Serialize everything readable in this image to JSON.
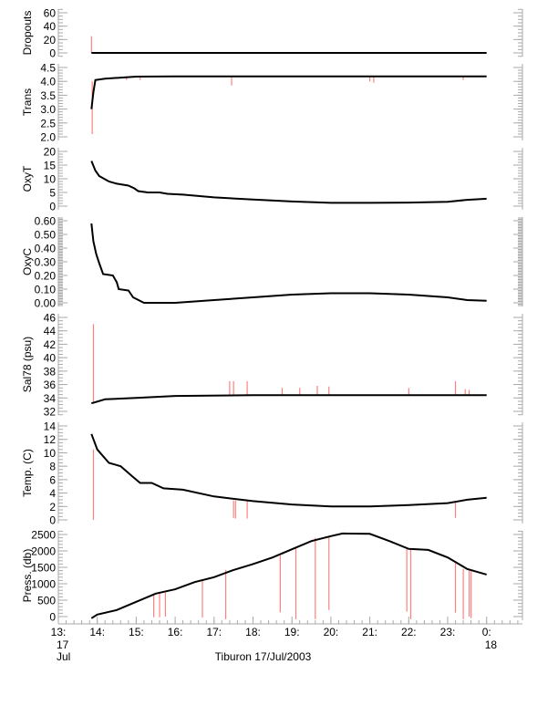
{
  "chart_data": {
    "type": "line",
    "title": "Tiburon 17/Jul/2003",
    "xlabel": "Tiburon 17/Jul/2003",
    "xlim": [
      13,
      24.92
    ],
    "x_ticks": [
      {
        "value": 13,
        "label": "13:",
        "sub1": "17",
        "sub2": "Jul"
      },
      {
        "value": 14,
        "label": "14:"
      },
      {
        "value": 15,
        "label": "15:"
      },
      {
        "value": 16,
        "label": "16:"
      },
      {
        "value": 17,
        "label": "17:"
      },
      {
        "value": 18,
        "label": "18:"
      },
      {
        "value": 19,
        "label": "19:"
      },
      {
        "value": 20,
        "label": "20:"
      },
      {
        "value": 21,
        "label": "21:"
      },
      {
        "value": 22,
        "label": "22:"
      },
      {
        "value": 23,
        "label": "23:"
      },
      {
        "value": 24,
        "label": "0:",
        "sub1": "18"
      }
    ],
    "colors": {
      "line": "#000000",
      "spike": "#ff8080",
      "axis": "#aaaaaa"
    },
    "panels": [
      {
        "ylabel": "Dropouts",
        "ylim": [
          -8,
          66
        ],
        "ticks": [
          0,
          20,
          40,
          60
        ],
        "tick_labels": [
          "0",
          "20",
          "40",
          "60"
        ],
        "minor": 5,
        "series": [
          [
            13.85,
            0
          ],
          [
            24,
            0
          ]
        ],
        "spikes": [
          [
            13.85,
            0,
            25
          ]
        ]
      },
      {
        "ylabel": "Trans",
        "ylim": [
          1.99,
          4.5
        ],
        "ticks": [
          2.0,
          2.5,
          3.0,
          3.5,
          4.0,
          4.5
        ],
        "tick_labels": [
          "2.0",
          "2.5",
          "3.0",
          "3.5",
          "4.0",
          "4.5"
        ],
        "minor": 0.1,
        "series": [
          [
            13.85,
            3.0
          ],
          [
            13.9,
            3.6
          ],
          [
            13.95,
            4.05
          ],
          [
            14.2,
            4.1
          ],
          [
            15,
            4.17
          ],
          [
            16,
            4.18
          ],
          [
            20,
            4.18
          ],
          [
            24,
            4.18
          ]
        ],
        "spikes": [
          [
            13.87,
            4.0,
            2.1
          ],
          [
            14.75,
            4.17,
            4.05
          ],
          [
            15.1,
            4.17,
            4.05
          ],
          [
            17.45,
            4.18,
            3.85
          ],
          [
            21.0,
            4.18,
            4.0
          ],
          [
            21.1,
            4.18,
            3.95
          ],
          [
            23.4,
            4.18,
            4.05
          ]
        ]
      },
      {
        "ylabel": "OxyT",
        "ylim": [
          -0.6,
          20.9
        ],
        "ticks": [
          0,
          5,
          10,
          15,
          20
        ],
        "tick_labels": [
          "0",
          "5",
          "10",
          "15",
          "20"
        ],
        "minor": 1,
        "series": [
          [
            13.85,
            16.5
          ],
          [
            13.95,
            13
          ],
          [
            14.05,
            11
          ],
          [
            14.3,
            9
          ],
          [
            14.5,
            8.2
          ],
          [
            14.8,
            7.5
          ],
          [
            14.95,
            6.5
          ],
          [
            15.05,
            5.5
          ],
          [
            15.3,
            5
          ],
          [
            15.6,
            5
          ],
          [
            15.8,
            4.5
          ],
          [
            16.2,
            4.2
          ],
          [
            17,
            3.2
          ],
          [
            18,
            2.4
          ],
          [
            19,
            1.7
          ],
          [
            20,
            1.2
          ],
          [
            21,
            1.2
          ],
          [
            22,
            1.3
          ],
          [
            23,
            1.6
          ],
          [
            23.5,
            2.3
          ],
          [
            24,
            2.7
          ]
        ],
        "spikes": []
      },
      {
        "ylabel": "OxyC",
        "ylim": [
          -0.02,
          0.632
        ],
        "ticks": [
          0,
          0.1,
          0.2,
          0.3,
          0.4,
          0.5,
          0.6
        ],
        "tick_labels": [
          "0.00",
          "0.10",
          "0.20",
          "0.30",
          "0.40",
          "0.50",
          "0.60"
        ],
        "minor": 0.01,
        "series": [
          [
            13.85,
            0.58
          ],
          [
            13.9,
            0.45
          ],
          [
            13.97,
            0.36
          ],
          [
            14.05,
            0.29
          ],
          [
            14.15,
            0.21
          ],
          [
            14.4,
            0.2
          ],
          [
            14.5,
            0.15
          ],
          [
            14.55,
            0.1
          ],
          [
            14.8,
            0.09
          ],
          [
            14.92,
            0.04
          ],
          [
            15.2,
            0.0
          ],
          [
            16,
            0.0
          ],
          [
            17,
            0.02
          ],
          [
            18,
            0.04
          ],
          [
            19,
            0.06
          ],
          [
            20,
            0.07
          ],
          [
            21,
            0.07
          ],
          [
            22,
            0.06
          ],
          [
            23,
            0.04
          ],
          [
            23.5,
            0.02
          ],
          [
            24,
            0.015
          ]
        ],
        "spikes": []
      },
      {
        "ylabel": "Sal78 (psu)",
        "ylim": [
          31.4,
          46.4
        ],
        "ticks": [
          32,
          34,
          36,
          38,
          40,
          42,
          44,
          46
        ],
        "tick_labels": [
          "32",
          "34",
          "36",
          "38",
          "40",
          "42",
          "44",
          "46"
        ],
        "minor": 0.5,
        "series": [
          [
            13.85,
            33.2
          ],
          [
            14.2,
            33.8
          ],
          [
            15,
            34.0
          ],
          [
            16,
            34.3
          ],
          [
            18,
            34.4
          ],
          [
            24,
            34.4
          ]
        ],
        "spikes": [
          [
            13.9,
            33.3,
            45
          ],
          [
            17.4,
            34.4,
            36.5
          ],
          [
            17.5,
            34.4,
            36.5
          ],
          [
            17.85,
            34.4,
            36.5
          ],
          [
            18.75,
            34.4,
            35.5
          ],
          [
            19.2,
            34.4,
            35.5
          ],
          [
            19.65,
            34.4,
            35.8
          ],
          [
            19.95,
            34.4,
            35.7
          ],
          [
            22.0,
            34.4,
            35.5
          ],
          [
            23.2,
            34.4,
            36.5
          ],
          [
            23.45,
            34.4,
            35.3
          ],
          [
            23.55,
            34.4,
            35.2
          ]
        ]
      },
      {
        "ylabel": "Temp. (C)",
        "ylim": [
          -0.4,
          14.4
        ],
        "ticks": [
          0,
          2,
          4,
          6,
          8,
          10,
          12,
          14
        ],
        "tick_labels": [
          "0",
          "2",
          "4",
          "6",
          "8",
          "10",
          "12",
          "14"
        ],
        "minor": 0.5,
        "series": [
          [
            13.85,
            12.8
          ],
          [
            14.0,
            10.5
          ],
          [
            14.3,
            8.5
          ],
          [
            14.6,
            8
          ],
          [
            14.9,
            6.5
          ],
          [
            15.1,
            5.5
          ],
          [
            15.4,
            5.5
          ],
          [
            15.7,
            4.7
          ],
          [
            16.2,
            4.5
          ],
          [
            17,
            3.5
          ],
          [
            18,
            2.8
          ],
          [
            19,
            2.3
          ],
          [
            20,
            2.0
          ],
          [
            21,
            2.0
          ],
          [
            22,
            2.2
          ],
          [
            23,
            2.5
          ],
          [
            23.5,
            3.0
          ],
          [
            24,
            3.3
          ]
        ],
        "spikes": [
          [
            13.9,
            10.5,
            0
          ],
          [
            17.5,
            2.9,
            0.3
          ],
          [
            17.55,
            2.9,
            0.2
          ],
          [
            17.85,
            2.8,
            0.2
          ],
          [
            23.2,
            2.7,
            0.3
          ]
        ]
      },
      {
        "ylabel": "Press. (db)",
        "ylim": [
          -80,
          2606
        ],
        "ticks": [
          0,
          500,
          1000,
          1500,
          2000,
          2500
        ],
        "tick_labels": [
          "0",
          "500",
          "1000",
          "1500",
          "2000",
          "2500"
        ],
        "minor": 100,
        "series": [
          [
            13.85,
            -50
          ],
          [
            14,
            60
          ],
          [
            14.5,
            200
          ],
          [
            15,
            450
          ],
          [
            15.5,
            700
          ],
          [
            16,
            830
          ],
          [
            16.5,
            1050
          ],
          [
            17,
            1200
          ],
          [
            17.5,
            1420
          ],
          [
            18,
            1600
          ],
          [
            18.5,
            1800
          ],
          [
            19,
            2050
          ],
          [
            19.5,
            2300
          ],
          [
            20,
            2450
          ],
          [
            20.3,
            2530
          ],
          [
            21,
            2520
          ],
          [
            21.5,
            2300
          ],
          [
            22,
            2060
          ],
          [
            22.5,
            2030
          ],
          [
            23,
            1800
          ],
          [
            23.5,
            1450
          ],
          [
            24,
            1280
          ]
        ],
        "spikes": [
          [
            15.45,
            700,
            -20
          ],
          [
            15.6,
            710,
            -20
          ],
          [
            15.75,
            730,
            0
          ],
          [
            16.7,
            1130,
            -30
          ],
          [
            17.3,
            1420,
            -80
          ],
          [
            18.7,
            1860,
            130
          ],
          [
            19.1,
            2100,
            -80
          ],
          [
            19.6,
            2400,
            -80
          ],
          [
            19.95,
            2450,
            200
          ],
          [
            21.95,
            2060,
            150
          ],
          [
            22.05,
            2040,
            -80
          ],
          [
            23.2,
            1620,
            120
          ],
          [
            23.4,
            1450,
            -80
          ],
          [
            23.55,
            1400,
            0
          ],
          [
            23.6,
            1380,
            -50
          ]
        ]
      }
    ]
  }
}
